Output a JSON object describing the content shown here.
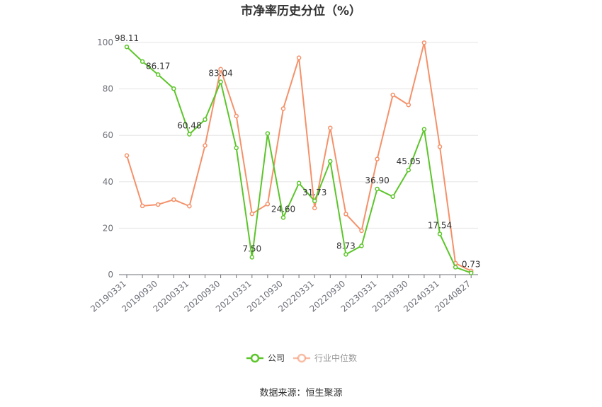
{
  "chart_data": {
    "type": "line",
    "title": "市净率历史分位（%）",
    "source": "数据来源：恒生聚源",
    "ylim": [
      0,
      100
    ],
    "yticks": [
      0,
      20,
      40,
      60,
      80,
      100
    ],
    "x": [
      "20190331",
      "20190630",
      "20190930",
      "20191231",
      "20200331",
      "20200630",
      "20200930",
      "20201231",
      "20210331",
      "20210630",
      "20210930",
      "20211231",
      "20220331",
      "20220630",
      "20220930",
      "20221231",
      "20230331",
      "20230630",
      "20230930",
      "20231231",
      "20240331",
      "20240630",
      "20240827"
    ],
    "x_tick_labels": [
      "20190331",
      "20190930",
      "20200331",
      "20200930",
      "20210331",
      "20210930",
      "20220331",
      "20220930",
      "20230331",
      "20230930",
      "20240331",
      "20240827"
    ],
    "legend_position": "bottom",
    "grid": true,
    "series": [
      {
        "name": "公司",
        "color": "#5cc52a",
        "values": [
          98.11,
          91.8,
          86.17,
          80.1,
          60.48,
          66.8,
          83.04,
          54.6,
          7.5,
          60.8,
          24.6,
          39.4,
          31.73,
          48.8,
          8.73,
          12.4,
          36.9,
          33.6,
          45.05,
          62.6,
          17.54,
          3.2,
          0.73
        ],
        "labels": {
          "0": "98.11",
          "2": "86.17",
          "4": "60.48",
          "6": "83.04",
          "8": "7.50",
          "10": "24.60",
          "12": "31.73",
          "14": "8.73",
          "16": "36.90",
          "18": "45.05",
          "20": "17.54",
          "22": "0.73"
        }
      },
      {
        "name": "行业中位数",
        "color": "#f5916a",
        "values": [
          51.3,
          29.6,
          30.2,
          32.3,
          29.5,
          55.6,
          88.5,
          68.3,
          26.2,
          30.4,
          71.5,
          93.4,
          28.7,
          63.2,
          26.1,
          18.9,
          49.8,
          77.4,
          73.1,
          99.9,
          55.1,
          4.9,
          1.6
        ]
      }
    ]
  }
}
